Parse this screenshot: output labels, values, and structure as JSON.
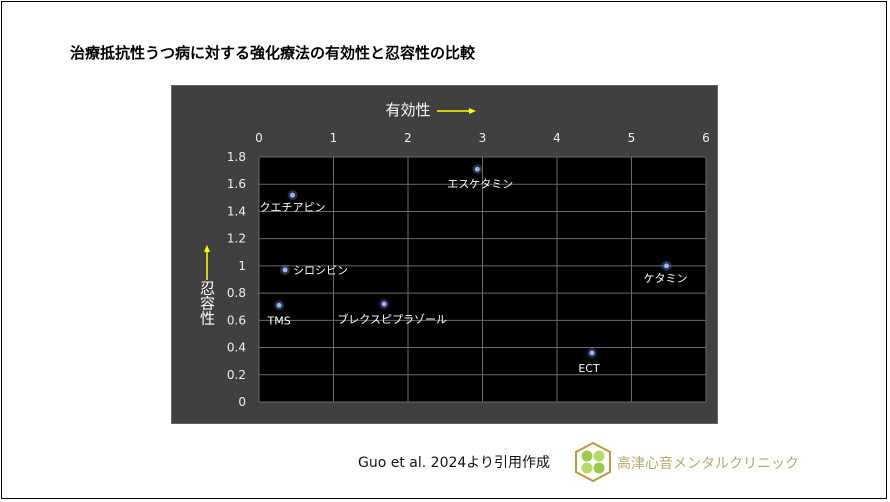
{
  "title": "治療抵抗性うつ病に対する強化療法の有効性と忍容性の比較",
  "citation": "Guo et al. 2024より引用作成",
  "clinic_name": "高津心音メンタルクリニック",
  "chart_data": {
    "type": "scatter",
    "xlabel": "有効性",
    "ylabel": "忍容性",
    "xlim": [
      0,
      6
    ],
    "ylim": [
      0,
      1.8
    ],
    "x_ticks": [
      "0",
      "1",
      "2",
      "3",
      "4",
      "5",
      "6"
    ],
    "y_ticks": [
      "0",
      "0.2",
      "0.4",
      "0.6",
      "0.8",
      "1",
      "1.2",
      "1.4",
      "1.6",
      "1.8"
    ],
    "x_axis_position": "top",
    "grid": true,
    "plot_bg": "#000000",
    "panel_bg": "#404040",
    "arrow_color": "#ffff00",
    "point_color": "#8fb4ff",
    "points": [
      {
        "label": "クエチアピン",
        "x": 0.45,
        "y": 1.52
      },
      {
        "label": "シロシビン",
        "x": 0.35,
        "y": 0.97
      },
      {
        "label": "TMS",
        "x": 0.27,
        "y": 0.71
      },
      {
        "label": "ブレクスピプラゾール",
        "x": 1.68,
        "y": 0.72
      },
      {
        "label": "エスケタミン",
        "x": 2.93,
        "y": 1.71
      },
      {
        "label": "ECT",
        "x": 4.47,
        "y": 0.36
      },
      {
        "label": "ケタミン",
        "x": 5.47,
        "y": 1.0
      }
    ]
  }
}
